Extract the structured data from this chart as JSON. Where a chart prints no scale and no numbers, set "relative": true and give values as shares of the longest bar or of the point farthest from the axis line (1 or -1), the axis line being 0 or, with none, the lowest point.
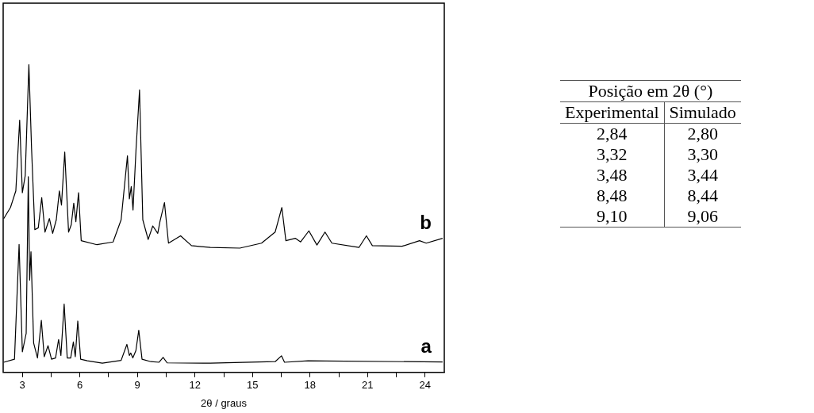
{
  "chart_data": [
    {
      "type": "line",
      "relative": true,
      "xlabel": "2θ / graus",
      "xlim": [
        2,
        25
      ],
      "xticks": [
        3,
        {
          "value": 4.5,
          "label": null
        },
        6,
        {
          "value": 7.5,
          "label": null
        },
        9,
        {
          "value": 10.5,
          "label": null
        },
        12,
        {
          "value": 13.5,
          "label": null
        },
        15,
        {
          "value": 16.5,
          "label": null
        },
        18,
        {
          "value": 19.5,
          "label": null
        },
        21,
        {
          "value": 22.5,
          "label": null
        },
        24
      ],
      "legend": false,
      "grid": false,
      "series": [
        {
          "name": "a",
          "color": "#000000",
          "x": [
            2.03,
            2.59,
            2.83,
            3.0,
            3.2,
            3.31,
            3.38,
            3.45,
            3.59,
            3.79,
            3.99,
            4.14,
            4.34,
            4.52,
            4.73,
            4.89,
            5.01,
            5.18,
            5.34,
            5.52,
            5.66,
            5.76,
            5.89,
            6.04,
            6.39,
            7.17,
            8.15,
            8.45,
            8.58,
            8.65,
            8.76,
            8.92,
            9.07,
            9.24,
            9.7,
            10.13,
            10.34,
            10.55,
            12.8,
            16.18,
            16.51,
            16.67,
            17.9,
            18.78,
            24.91
          ],
          "values": [
            0.033,
            0.043,
            0.416,
            0.067,
            0.127,
            0.636,
            0.3,
            0.392,
            0.095,
            0.047,
            0.169,
            0.051,
            0.087,
            0.043,
            0.047,
            0.107,
            0.055,
            0.222,
            0.047,
            0.047,
            0.099,
            0.051,
            0.167,
            0.043,
            0.038,
            0.03,
            0.039,
            0.091,
            0.055,
            0.063,
            0.047,
            0.071,
            0.137,
            0.043,
            0.035,
            0.033,
            0.049,
            0.031,
            0.03,
            0.035,
            0.054,
            0.033,
            0.038,
            0.037,
            0.034
          ]
        },
        {
          "name": "b",
          "color": "#000000",
          "x": [
            2.03,
            2.38,
            2.66,
            2.86,
            3.0,
            3.15,
            3.34,
            3.48,
            3.65,
            3.83,
            4.01,
            4.18,
            4.41,
            4.58,
            4.77,
            4.93,
            5.04,
            5.21,
            5.41,
            5.55,
            5.68,
            5.79,
            5.93,
            6.07,
            6.89,
            7.73,
            8.15,
            8.48,
            8.58,
            8.68,
            8.77,
            8.93,
            9.11,
            9.28,
            9.56,
            9.8,
            10.06,
            10.18,
            10.41,
            10.62,
            11.25,
            11.82,
            12.8,
            14.34,
            15.47,
            16.18,
            16.53,
            16.74,
            17.23,
            17.51,
            17.94,
            18.36,
            18.78,
            19.14,
            20.55,
            20.94,
            21.25,
            22.8,
            23.71,
            24.06,
            24.91
          ],
          "values": [
            0.5,
            0.536,
            0.59,
            0.82,
            0.584,
            0.64,
            1,
            0.728,
            0.464,
            0.47,
            0.568,
            0.456,
            0.5,
            0.452,
            0.496,
            0.59,
            0.544,
            0.716,
            0.456,
            0.48,
            0.55,
            0.49,
            0.584,
            0.428,
            0.415,
            0.424,
            0.496,
            0.704,
            0.564,
            0.604,
            0.528,
            0.728,
            0.918,
            0.496,
            0.432,
            0.476,
            0.452,
            0.492,
            0.552,
            0.42,
            0.444,
            0.412,
            0.406,
            0.404,
            0.42,
            0.456,
            0.536,
            0.428,
            0.436,
            0.424,
            0.46,
            0.414,
            0.456,
            0.42,
            0.406,
            0.444,
            0.412,
            0.41,
            0.428,
            0.42,
            0.436
          ]
        }
      ]
    },
    {
      "type": "other",
      "title": "Posição em 2θ (°)",
      "categories": [
        "Experimental",
        "Simulado"
      ],
      "annotations": [
        "2,84",
        "2,80",
        "3,32",
        "3,30",
        "3,48",
        "3,44",
        "8,48",
        "8,44",
        "9,10",
        "9,06"
      ]
    }
  ]
}
